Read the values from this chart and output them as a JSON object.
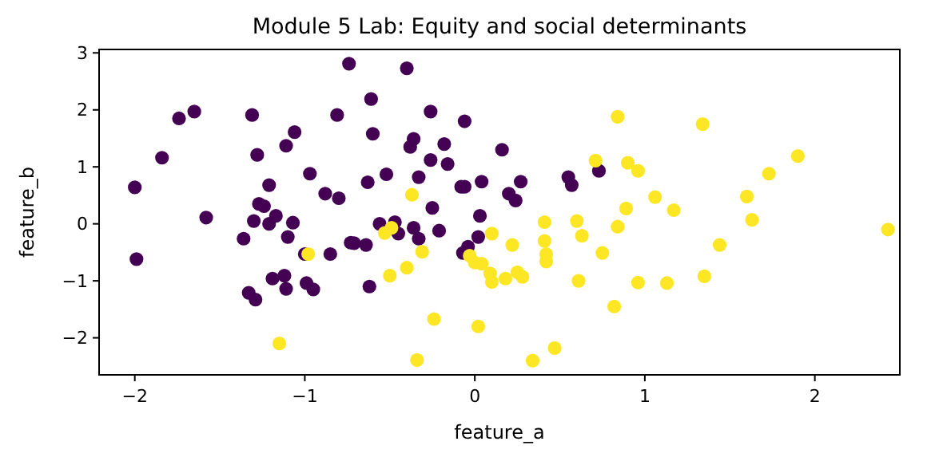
{
  "chart_data": {
    "type": "scatter",
    "title": "Module 5 Lab: Equity and social determinants",
    "xlabel": "feature_a",
    "ylabel": "feature_b",
    "xlim": [
      -2.21,
      2.5
    ],
    "ylim": [
      -2.65,
      3.06
    ],
    "xticks": [
      -2,
      -1,
      0,
      1,
      2
    ],
    "yticks": [
      -2,
      -1,
      0,
      1,
      2,
      3
    ],
    "marker": "circle",
    "series": [
      {
        "color": "#440154",
        "x": [
          -0.74,
          -1.74,
          -1.65,
          -1.31,
          -0.81,
          -1.06,
          -1.11,
          -1.84,
          -1.28,
          -2.0,
          -0.97,
          -1.21,
          -0.88,
          -0.8,
          -1.27,
          -1.24,
          -1.17,
          -1.58,
          -1.3,
          -1.21,
          -1.07,
          -1.36,
          -1.1,
          -0.73,
          -1.99,
          -1.0,
          -0.85,
          -1.12,
          -1.19,
          -0.99,
          -0.95,
          -1.11,
          -1.33,
          -1.29,
          -0.4,
          -0.61,
          -0.26,
          -0.06,
          -0.6,
          -0.36,
          -0.38,
          -0.18,
          -0.26,
          -0.16,
          0.16,
          -0.52,
          -0.63,
          -0.33,
          -0.08,
          -0.06,
          0.04,
          0.27,
          0.2,
          0.24,
          0.55,
          0.57,
          0.73,
          -0.25,
          0.03,
          -0.56,
          -0.47,
          -0.45,
          -0.36,
          -0.33,
          -0.21,
          -0.71,
          -0.64,
          -0.04,
          -0.07,
          0.02,
          -0.62
        ],
        "values": [
          2.81,
          1.85,
          1.97,
          1.91,
          1.91,
          1.61,
          1.37,
          1.16,
          1.21,
          0.64,
          0.88,
          0.68,
          0.53,
          0.45,
          0.35,
          0.31,
          0.14,
          0.11,
          0.05,
          0.0,
          0.02,
          -0.26,
          -0.23,
          -0.33,
          -0.62,
          -0.53,
          -0.53,
          -0.91,
          -0.96,
          -1.04,
          -1.15,
          -1.14,
          -1.21,
          -1.33,
          2.73,
          2.19,
          1.97,
          1.8,
          1.58,
          1.49,
          1.35,
          1.4,
          1.12,
          1.05,
          1.3,
          0.87,
          0.73,
          0.82,
          0.65,
          0.65,
          0.74,
          0.74,
          0.53,
          0.41,
          0.82,
          0.68,
          0.93,
          0.28,
          0.14,
          0.0,
          0.03,
          -0.17,
          -0.07,
          -0.26,
          -0.12,
          -0.34,
          -0.37,
          -0.4,
          -0.51,
          -0.23,
          -1.1
        ]
      },
      {
        "color": "#fde725",
        "x": [
          -0.98,
          -1.15,
          0.84,
          0.71,
          0.9,
          -0.37,
          0.89,
          -0.53,
          -0.49,
          0.41,
          0.6,
          0.84,
          0.1,
          0.63,
          0.41,
          0.22,
          -0.31,
          -0.03,
          0.0,
          0.04,
          0.42,
          0.42,
          0.75,
          0.09,
          0.1,
          0.18,
          0.25,
          0.28,
          -0.4,
          -0.5,
          0.61,
          0.82,
          -0.24,
          0.02,
          0.47,
          0.34,
          -0.34,
          1.34,
          0.96,
          1.9,
          1.73,
          1.06,
          1.17,
          1.6,
          1.63,
          2.43,
          1.44,
          0.96,
          1.13,
          1.35
        ],
        "values": [
          -0.53,
          -2.1,
          1.88,
          1.11,
          1.07,
          0.51,
          0.27,
          -0.16,
          -0.07,
          0.03,
          0.05,
          -0.05,
          -0.17,
          -0.21,
          -0.3,
          -0.37,
          -0.49,
          -0.56,
          -0.68,
          -0.7,
          -0.53,
          -0.66,
          -0.51,
          -0.87,
          -1.02,
          -0.96,
          -0.85,
          -0.93,
          -0.77,
          -0.91,
          -1.0,
          -1.45,
          -1.67,
          -1.8,
          -2.18,
          -2.4,
          -2.39,
          1.75,
          0.93,
          1.19,
          0.88,
          0.47,
          0.24,
          0.48,
          0.07,
          -0.1,
          -0.37,
          -1.03,
          -1.04,
          -0.92
        ]
      }
    ]
  }
}
